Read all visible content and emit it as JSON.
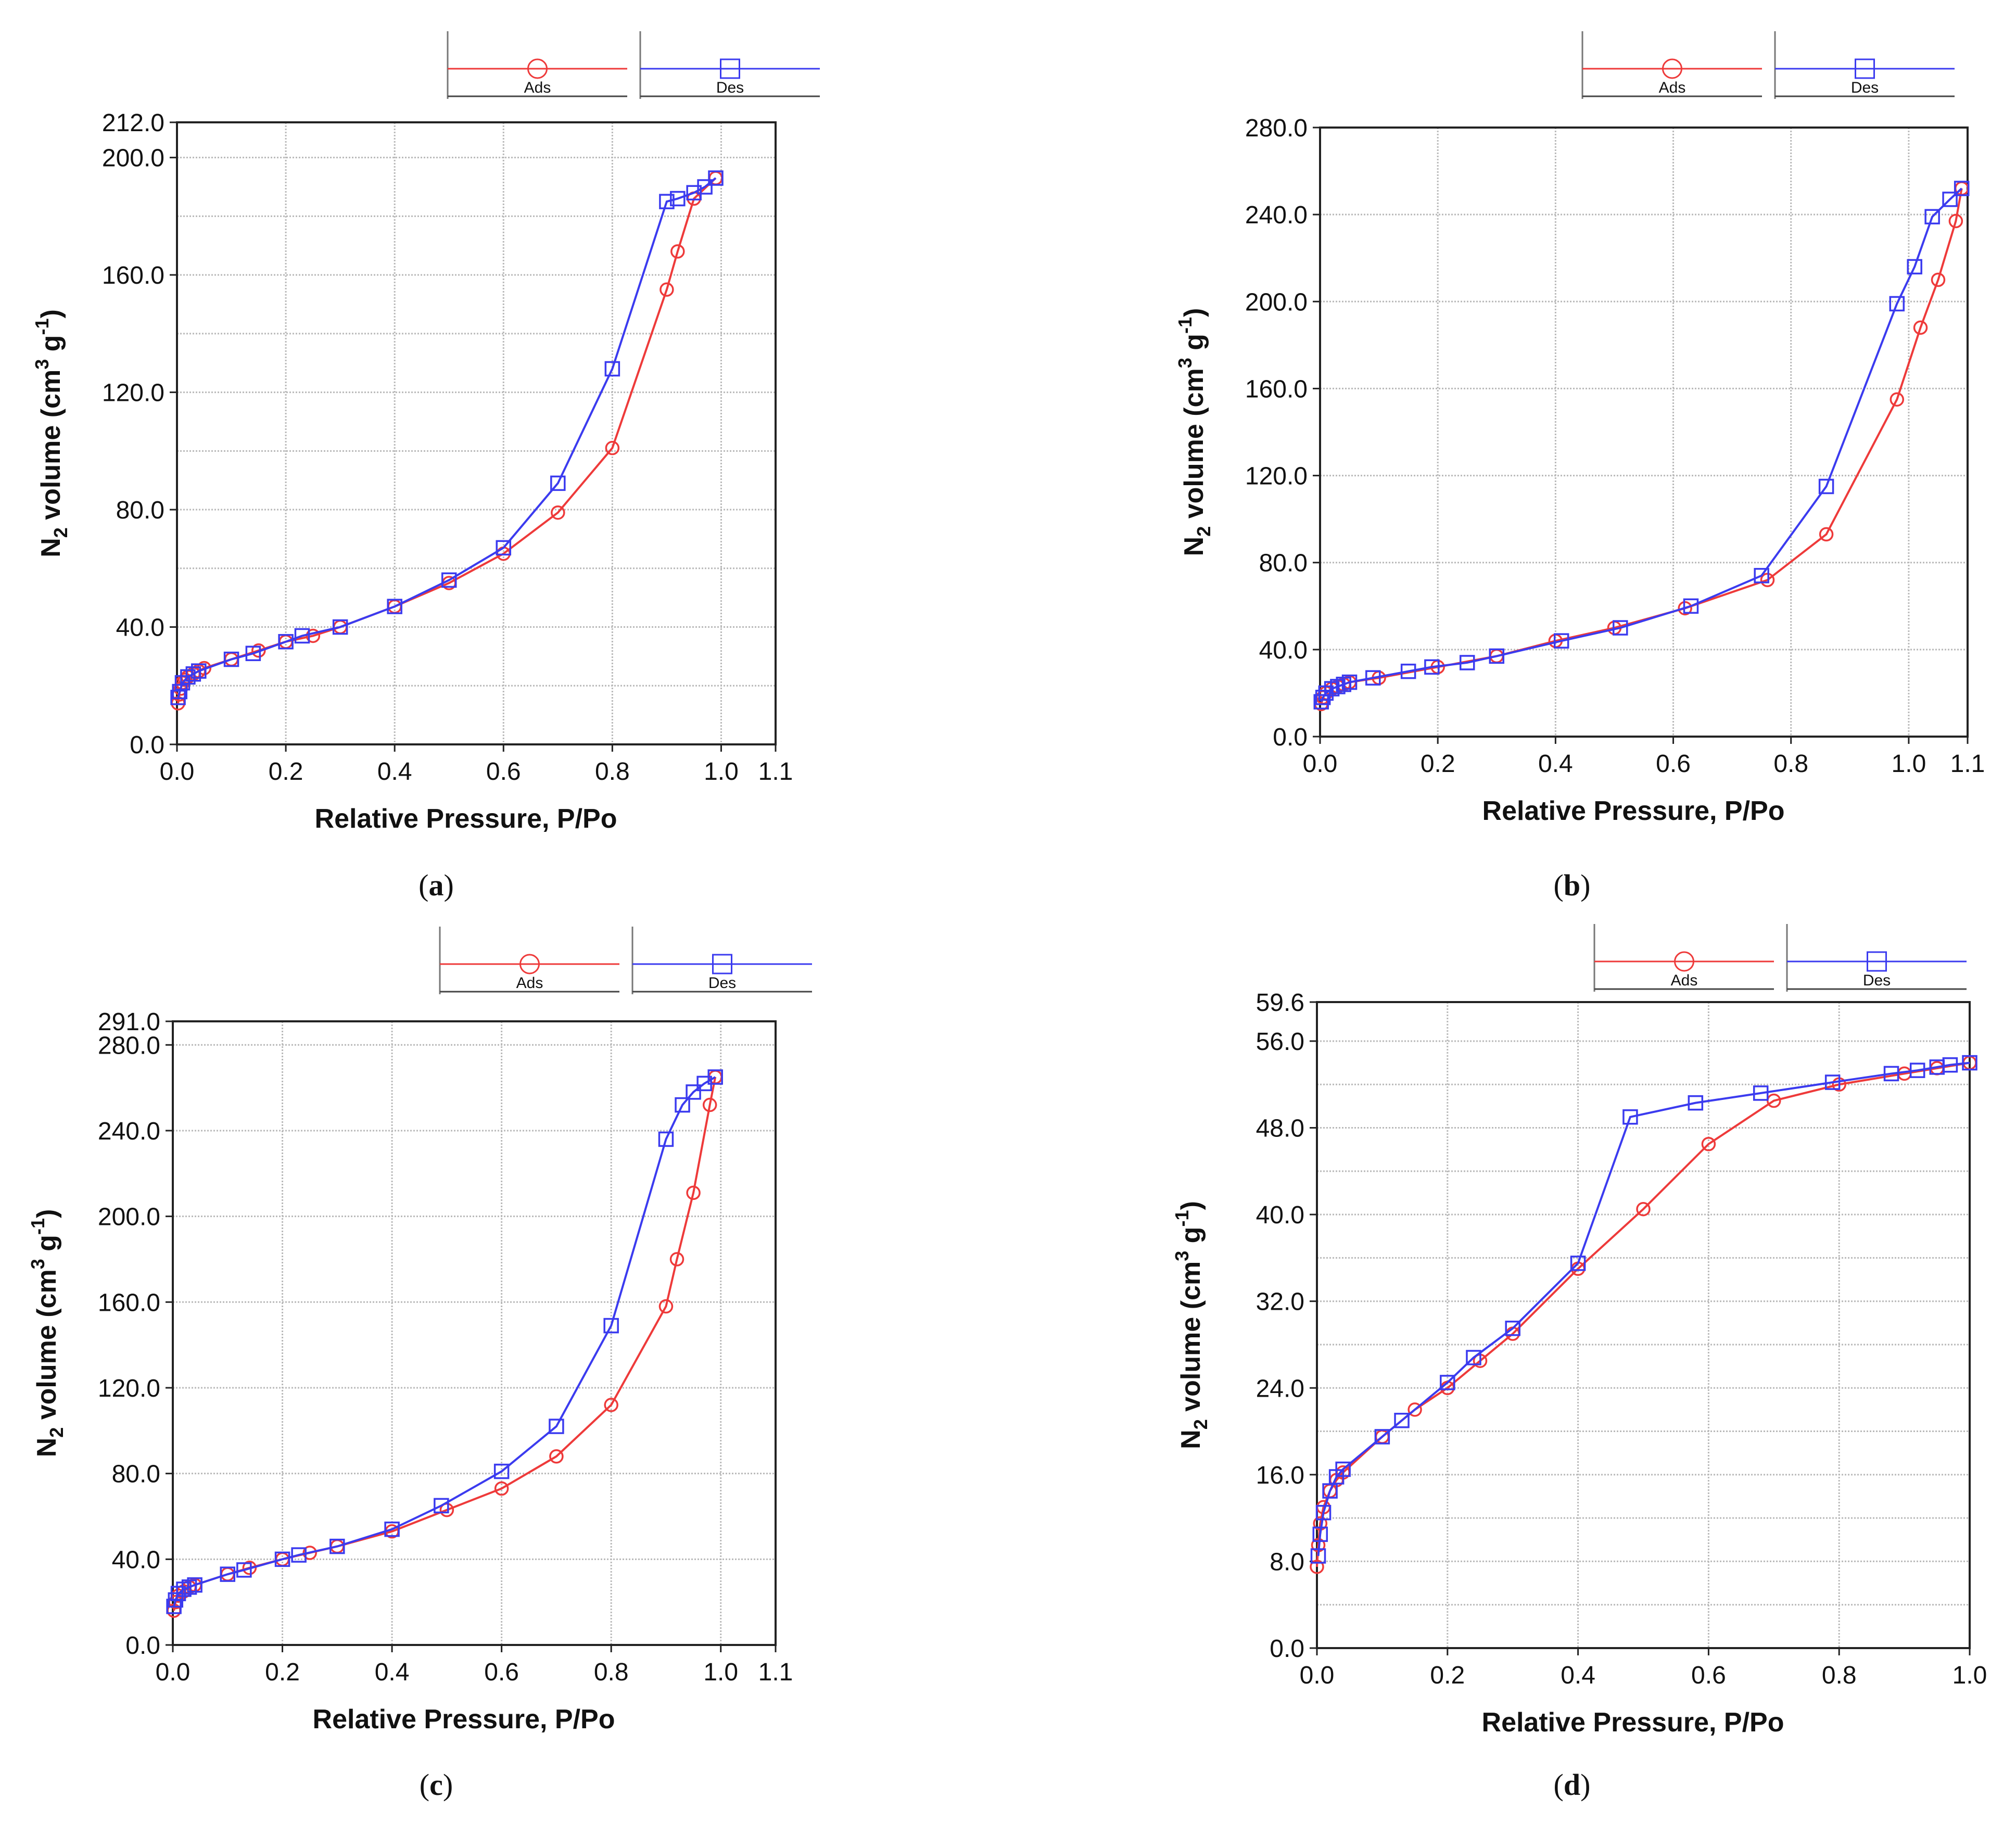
{
  "figure": {
    "colors": {
      "ads": "#ee3a3a",
      "des": "#3b3bef",
      "grid": "#b9b9b9",
      "axis": "#222222"
    }
  },
  "chart_data": [
    {
      "type": "line",
      "panel_label": "a",
      "xlabel": "Relative Pressure, P/Po",
      "ylabel_parts": {
        "prefix": "N",
        "sub": "2",
        "middle": " volume (cm",
        "sup1": "3",
        "g": " g",
        "sup2": "-1",
        "suffix": ")"
      },
      "xlim": [
        0,
        1.1
      ],
      "ylim": [
        0,
        212
      ],
      "xticks": [
        0,
        0.2,
        0.4,
        0.6,
        0.8,
        1.0,
        1.1
      ],
      "xtick_labels": [
        "0.0",
        "0.2",
        "0.4",
        "0.6",
        "0.8",
        "1.0",
        "1.1"
      ],
      "yticks": [
        0,
        40,
        80,
        120,
        160,
        200,
        212
      ],
      "ytick_labels": [
        "0.0",
        "40.0",
        "80.0",
        "120.0",
        "160.0",
        "200.0",
        "212.0"
      ],
      "hgrid": [
        0,
        20,
        40,
        60,
        80,
        100,
        120,
        140,
        160,
        180,
        200
      ],
      "legend": [
        {
          "name": "Ads",
          "marker": "circle"
        },
        {
          "name": "Des",
          "marker": "square"
        }
      ],
      "series": [
        {
          "name": "Ads",
          "marker": "circle",
          "color": "#ee3a3a",
          "x": [
            0.002,
            0.004,
            0.007,
            0.01,
            0.015,
            0.02,
            0.03,
            0.04,
            0.05,
            0.1,
            0.15,
            0.2,
            0.25,
            0.3,
            0.4,
            0.5,
            0.6,
            0.7,
            0.8,
            0.9,
            0.92,
            0.95,
            0.99
          ],
          "y": [
            14,
            17,
            19,
            21,
            22,
            23,
            24,
            25,
            26,
            29,
            32,
            35,
            37,
            40,
            47,
            55,
            65,
            79,
            101,
            155,
            168,
            186,
            193
          ]
        },
        {
          "name": "Des",
          "marker": "square",
          "color": "#3b3bef",
          "x": [
            0.99,
            0.97,
            0.95,
            0.92,
            0.9,
            0.8,
            0.7,
            0.6,
            0.5,
            0.4,
            0.3,
            0.23,
            0.2,
            0.14,
            0.1,
            0.04,
            0.03,
            0.02,
            0.01,
            0.005,
            0.002
          ],
          "y": [
            193,
            190,
            188,
            186,
            185,
            128,
            89,
            67,
            56,
            47,
            40,
            37,
            35,
            31,
            29,
            25,
            24,
            23,
            21,
            18,
            16
          ]
        }
      ]
    },
    {
      "type": "line",
      "panel_label": "b",
      "xlabel": "Relative Pressure, P/Po",
      "ylabel_parts": {
        "prefix": "N",
        "sub": "2",
        "middle": " volume (cm",
        "sup1": "3",
        "g": " g",
        "sup2": "-1",
        "suffix": ")"
      },
      "xlim": [
        0,
        1.1
      ],
      "ylim": [
        0,
        280
      ],
      "xticks": [
        0,
        0.2,
        0.4,
        0.6,
        0.8,
        1.0,
        1.1
      ],
      "xtick_labels": [
        "0.0",
        "0.2",
        "0.4",
        "0.6",
        "0.8",
        "1.0",
        "1.1"
      ],
      "yticks": [
        0,
        40,
        80,
        120,
        160,
        200,
        240,
        280
      ],
      "ytick_labels": [
        "0.0",
        "40.0",
        "80.0",
        "120.0",
        "160.0",
        "200.0",
        "240.0",
        "280.0"
      ],
      "hgrid": [
        0,
        40,
        80,
        120,
        160,
        200,
        240,
        280
      ],
      "legend": [
        {
          "name": "Ads",
          "marker": "circle"
        },
        {
          "name": "Des",
          "marker": "square"
        }
      ],
      "series": [
        {
          "name": "Ads",
          "marker": "circle",
          "color": "#ee3a3a",
          "x": [
            0.002,
            0.005,
            0.01,
            0.02,
            0.03,
            0.04,
            0.05,
            0.1,
            0.2,
            0.3,
            0.4,
            0.5,
            0.62,
            0.76,
            0.86,
            0.98,
            1.02,
            1.05,
            1.08,
            1.09
          ],
          "y": [
            15,
            18,
            20,
            22,
            23,
            24,
            25,
            27,
            32,
            37,
            44,
            50,
            59,
            72,
            93,
            155,
            188,
            210,
            237,
            252
          ]
        },
        {
          "name": "Des",
          "marker": "square",
          "color": "#3b3bef",
          "x": [
            1.09,
            1.07,
            1.04,
            1.01,
            0.98,
            0.86,
            0.75,
            0.63,
            0.51,
            0.41,
            0.3,
            0.25,
            0.19,
            0.15,
            0.09,
            0.05,
            0.04,
            0.03,
            0.02,
            0.01,
            0.005,
            0.002
          ],
          "y": [
            252,
            247,
            239,
            216,
            199,
            115,
            74,
            60,
            50,
            44,
            37,
            34,
            32,
            30,
            27,
            25,
            24,
            23,
            22,
            20,
            18,
            16
          ]
        }
      ]
    },
    {
      "type": "line",
      "panel_label": "c",
      "xlabel": "Relative Pressure, P/Po",
      "ylabel_parts": {
        "prefix": "N",
        "sub": "2",
        "middle": " volume (cm",
        "sup1": "3",
        "g": " g",
        "sup2": "-1",
        "suffix": ")"
      },
      "xlim": [
        0,
        1.1
      ],
      "ylim": [
        0,
        291
      ],
      "xticks": [
        0,
        0.2,
        0.4,
        0.6,
        0.8,
        1.0,
        1.1
      ],
      "xtick_labels": [
        "0.0",
        "0.2",
        "0.4",
        "0.6",
        "0.8",
        "1.0",
        "1.1"
      ],
      "yticks": [
        0,
        40,
        80,
        120,
        160,
        200,
        240,
        280,
        291
      ],
      "ytick_labels": [
        "0.0",
        "40.0",
        "80.0",
        "120.0",
        "160.0",
        "200.0",
        "240.0",
        "280.0",
        "291.0"
      ],
      "hgrid": [
        0,
        40,
        80,
        120,
        160,
        200,
        240,
        280
      ],
      "legend": [
        {
          "name": "Ads",
          "marker": "circle"
        },
        {
          "name": "Des",
          "marker": "square"
        }
      ],
      "series": [
        {
          "name": "Ads",
          "marker": "circle",
          "color": "#ee3a3a",
          "x": [
            0.002,
            0.005,
            0.01,
            0.02,
            0.03,
            0.04,
            0.1,
            0.14,
            0.2,
            0.25,
            0.3,
            0.4,
            0.5,
            0.6,
            0.7,
            0.8,
            0.9,
            0.92,
            0.95,
            0.98,
            0.99
          ],
          "y": [
            16,
            20,
            23,
            25,
            27,
            28,
            33,
            36,
            40,
            43,
            46,
            53,
            63,
            73,
            88,
            112,
            158,
            180,
            211,
            252,
            265
          ]
        },
        {
          "name": "Des",
          "marker": "square",
          "color": "#3b3bef",
          "x": [
            0.99,
            0.97,
            0.95,
            0.93,
            0.9,
            0.8,
            0.7,
            0.6,
            0.49,
            0.4,
            0.3,
            0.23,
            0.2,
            0.13,
            0.1,
            0.04,
            0.03,
            0.02,
            0.01,
            0.005,
            0.002
          ],
          "y": [
            265,
            262,
            258,
            252,
            236,
            149,
            102,
            81,
            65,
            54,
            46,
            42,
            40,
            35,
            33,
            28,
            27,
            26,
            24,
            21,
            18
          ]
        }
      ]
    },
    {
      "type": "line",
      "panel_label": "d",
      "xlabel": "Relative Pressure, P/Po",
      "ylabel_parts": {
        "prefix": "N",
        "sub": "2",
        "middle": " volume (cm",
        "sup1": "3",
        "g": " g",
        "sup2": "-1",
        "suffix": ")"
      },
      "xlim": [
        0,
        1.0
      ],
      "ylim": [
        0,
        59.6
      ],
      "xticks": [
        0,
        0.2,
        0.4,
        0.6,
        0.8,
        1.0
      ],
      "xtick_labels": [
        "0.0",
        "0.2",
        "0.4",
        "0.6",
        "0.8",
        "1.0"
      ],
      "yticks": [
        0,
        8,
        16,
        24,
        32,
        40,
        48,
        56,
        59.6
      ],
      "ytick_labels": [
        "0.0",
        "8.0",
        "16.0",
        "24.0",
        "32.0",
        "40.0",
        "48.0",
        "56.0",
        "59.6"
      ],
      "hgrid": [
        0,
        4,
        8,
        12,
        16,
        20,
        24,
        28,
        32,
        36,
        40,
        44,
        48,
        52,
        56
      ],
      "legend": [
        {
          "name": "Ads",
          "marker": "circle"
        },
        {
          "name": "Des",
          "marker": "square"
        }
      ],
      "series": [
        {
          "name": "Ads",
          "marker": "circle",
          "color": "#ee3a3a",
          "x": [
            0.0,
            0.002,
            0.005,
            0.01,
            0.02,
            0.03,
            0.04,
            0.1,
            0.15,
            0.2,
            0.25,
            0.3,
            0.4,
            0.5,
            0.6,
            0.7,
            0.8,
            0.9,
            0.95,
            1.0
          ],
          "y": [
            7.5,
            9.5,
            11.5,
            13,
            14.5,
            15.5,
            16.2,
            19.5,
            22,
            24,
            26.5,
            29,
            35,
            40.5,
            46.5,
            50.5,
            52,
            53,
            53.5,
            54
          ]
        },
        {
          "name": "Des",
          "marker": "square",
          "color": "#3b3bef",
          "x": [
            1.0,
            0.97,
            0.95,
            0.92,
            0.88,
            0.79,
            0.68,
            0.58,
            0.48,
            0.4,
            0.3,
            0.24,
            0.2,
            0.13,
            0.1,
            0.04,
            0.03,
            0.02,
            0.01,
            0.005,
            0.002
          ],
          "y": [
            54,
            53.8,
            53.6,
            53.3,
            53,
            52.2,
            51.2,
            50.3,
            49,
            35.5,
            29.5,
            26.8,
            24.5,
            21,
            19.5,
            16.5,
            15.8,
            14.5,
            12.5,
            10.5,
            8.5
          ]
        }
      ]
    }
  ]
}
